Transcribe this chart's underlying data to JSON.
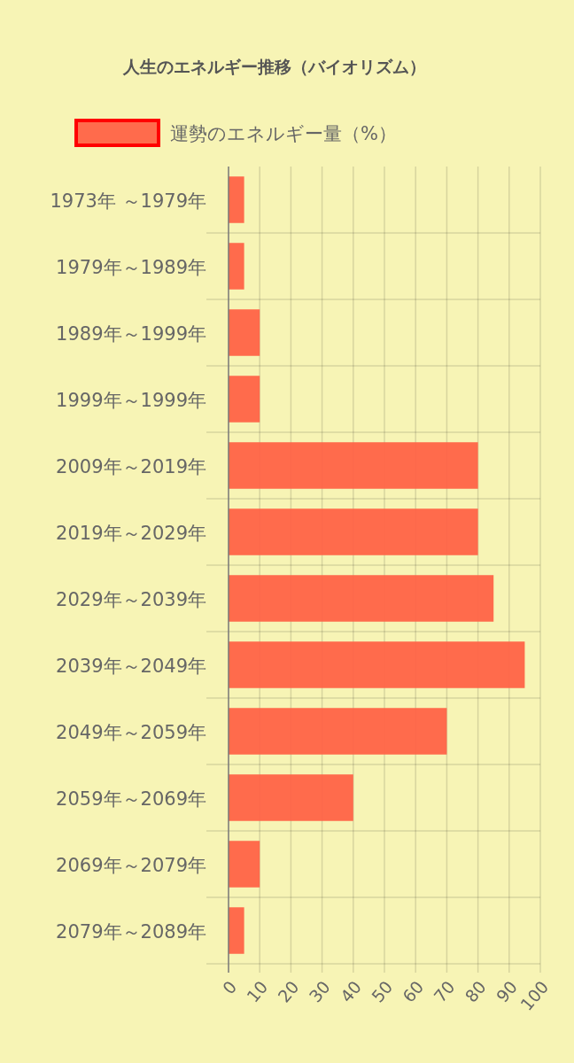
{
  "chart_data": {
    "type": "bar",
    "orientation": "horizontal",
    "title": "人生のエネルギー推移（バイオリズム）",
    "categories": [
      "1973年 ～1979年",
      "1979年～1989年",
      "1989年～1999年",
      "1999年～1999年",
      "2009年～2019年",
      "2019年～2029年",
      "2029年～2039年",
      "2039年～2049年",
      "2049年～2059年",
      "2059年～2069年",
      "2069年～2079年",
      "2079年～2089年"
    ],
    "series": [
      {
        "name": "運勢のエネルギー量（%）",
        "color": "#ff6347",
        "values": [
          5,
          5,
          10,
          10,
          80,
          80,
          85,
          95,
          70,
          40,
          10,
          5
        ]
      }
    ],
    "xlim": [
      0,
      100
    ],
    "xticks": [
      0,
      10,
      20,
      30,
      40,
      50,
      60,
      70,
      80,
      90,
      100
    ],
    "grid": true,
    "legend": "top"
  }
}
